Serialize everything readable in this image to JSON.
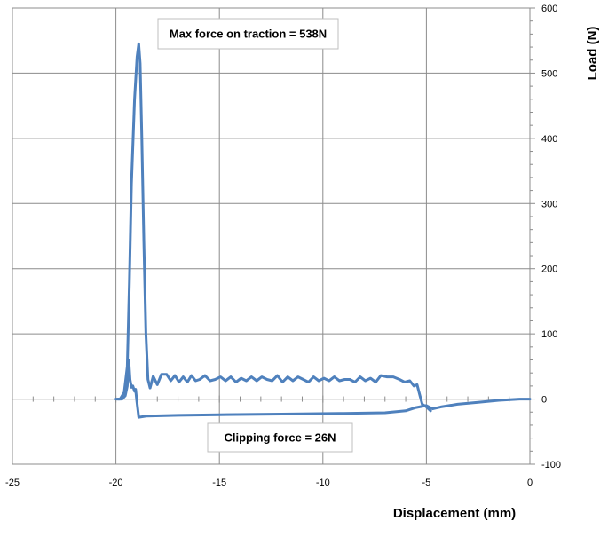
{
  "chart_data": {
    "type": "line",
    "xlabel": "Displacement (mm)",
    "ylabel": "Load (N)",
    "xlim": [
      -25,
      0
    ],
    "ylim": [
      -100,
      600
    ],
    "x_ticks": [
      "-25",
      "-20",
      "-15",
      "-10",
      "-5",
      "0"
    ],
    "y_ticks": [
      "-100",
      "0",
      "100",
      "200",
      "300",
      "400",
      "500",
      "600"
    ],
    "grid": true,
    "y_axis_position": "right",
    "line_color": "#4F81BD",
    "annotations": [
      {
        "text": "Max force on traction = 538N"
      },
      {
        "text": "Clipping force = 26N"
      }
    ],
    "series": [
      {
        "values": [
          [
            -19.9,
            0
          ],
          [
            -19.7,
            0
          ],
          [
            -19.55,
            5
          ],
          [
            -19.45,
            20
          ],
          [
            -19.38,
            60
          ],
          [
            -19.32,
            30
          ],
          [
            -19.25,
            18
          ],
          [
            -19.18,
            20
          ],
          [
            -19.1,
            12
          ],
          [
            -19.05,
            15
          ],
          [
            -19.0,
            0
          ],
          [
            -18.9,
            -28
          ],
          [
            -18.5,
            -26
          ],
          [
            -17.0,
            -25
          ],
          [
            -15.0,
            -24
          ],
          [
            -12.0,
            -23
          ],
          [
            -9.0,
            -22
          ],
          [
            -7.0,
            -21
          ],
          [
            -6.0,
            -18
          ],
          [
            -5.5,
            -13
          ],
          [
            -5.0,
            -10
          ],
          [
            -4.7,
            -15
          ],
          [
            -4.3,
            -12
          ],
          [
            -3.5,
            -8
          ],
          [
            -2.5,
            -5
          ],
          [
            -1.5,
            -2
          ],
          [
            -0.5,
            0
          ],
          [
            0,
            0
          ]
        ]
      },
      {
        "values": [
          [
            -20.0,
            0
          ],
          [
            -19.8,
            0
          ],
          [
            -19.6,
            10
          ],
          [
            -19.45,
            50
          ],
          [
            -19.35,
            180
          ],
          [
            -19.25,
            330
          ],
          [
            -19.1,
            460
          ],
          [
            -18.98,
            525
          ],
          [
            -18.9,
            545
          ],
          [
            -18.83,
            515
          ],
          [
            -18.75,
            400
          ],
          [
            -18.65,
            240
          ],
          [
            -18.55,
            100
          ],
          [
            -18.45,
            30
          ],
          [
            -18.35,
            17
          ],
          [
            -18.2,
            35
          ],
          [
            -18.0,
            22
          ],
          [
            -17.8,
            38
          ],
          [
            -17.55,
            38
          ],
          [
            -17.35,
            28
          ],
          [
            -17.15,
            36
          ],
          [
            -16.95,
            26
          ],
          [
            -16.75,
            34
          ],
          [
            -16.55,
            26
          ],
          [
            -16.35,
            36
          ],
          [
            -16.15,
            28
          ],
          [
            -15.95,
            30
          ],
          [
            -15.7,
            36
          ],
          [
            -15.45,
            28
          ],
          [
            -15.2,
            30
          ],
          [
            -14.95,
            34
          ],
          [
            -14.7,
            28
          ],
          [
            -14.45,
            34
          ],
          [
            -14.2,
            26
          ],
          [
            -13.95,
            32
          ],
          [
            -13.7,
            28
          ],
          [
            -13.45,
            34
          ],
          [
            -13.2,
            28
          ],
          [
            -12.95,
            34
          ],
          [
            -12.7,
            30
          ],
          [
            -12.45,
            28
          ],
          [
            -12.2,
            36
          ],
          [
            -11.95,
            26
          ],
          [
            -11.7,
            34
          ],
          [
            -11.45,
            28
          ],
          [
            -11.2,
            34
          ],
          [
            -10.95,
            30
          ],
          [
            -10.7,
            26
          ],
          [
            -10.45,
            34
          ],
          [
            -10.2,
            28
          ],
          [
            -9.95,
            32
          ],
          [
            -9.7,
            28
          ],
          [
            -9.45,
            34
          ],
          [
            -9.2,
            28
          ],
          [
            -8.95,
            30
          ],
          [
            -8.7,
            30
          ],
          [
            -8.45,
            26
          ],
          [
            -8.2,
            34
          ],
          [
            -7.95,
            28
          ],
          [
            -7.7,
            32
          ],
          [
            -7.45,
            26
          ],
          [
            -7.2,
            36
          ],
          [
            -6.9,
            34
          ],
          [
            -6.6,
            34
          ],
          [
            -6.3,
            30
          ],
          [
            -6.05,
            26
          ],
          [
            -5.8,
            28
          ],
          [
            -5.6,
            20
          ],
          [
            -5.45,
            22
          ],
          [
            -5.35,
            10
          ],
          [
            -5.2,
            -8
          ],
          [
            -5.0,
            -12
          ],
          [
            -4.8,
            -18
          ]
        ]
      }
    ]
  }
}
